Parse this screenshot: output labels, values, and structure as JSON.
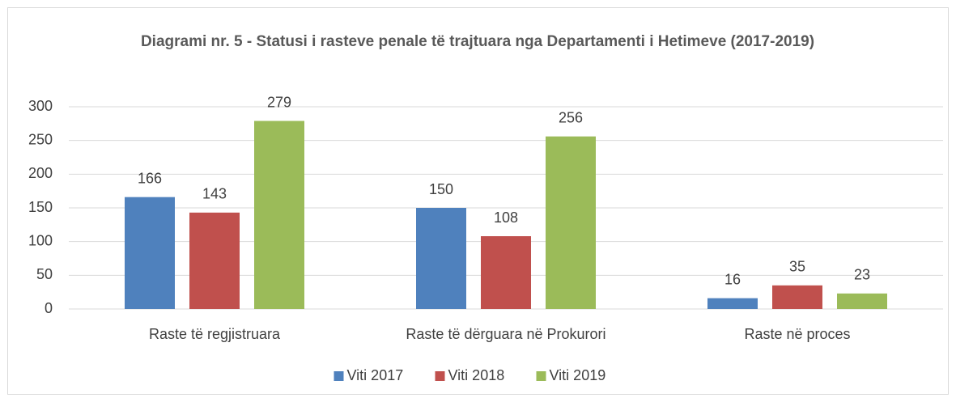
{
  "chart_data": {
    "type": "bar",
    "title": "Diagrami nr. 5 - Statusi i rasteve penale të trajtuara nga Departamenti i Hetimeve (2017-2019)",
    "categories": [
      "Raste të regjistruara",
      "Raste të dërguara në Prokurori",
      "Raste në proces"
    ],
    "series": [
      {
        "name": "Viti 2017",
        "color": "#4f81bd",
        "values": [
          166,
          150,
          16
        ]
      },
      {
        "name": "Viti 2018",
        "color": "#c0504d",
        "values": [
          143,
          108,
          35
        ]
      },
      {
        "name": "Viti 2019",
        "color": "#9bbb59",
        "values": [
          279,
          256,
          23
        ]
      }
    ],
    "ylim": [
      0,
      300
    ],
    "yticks": [
      0,
      50,
      100,
      150,
      200,
      250,
      300
    ],
    "grid": true,
    "legend": "bottom"
  }
}
